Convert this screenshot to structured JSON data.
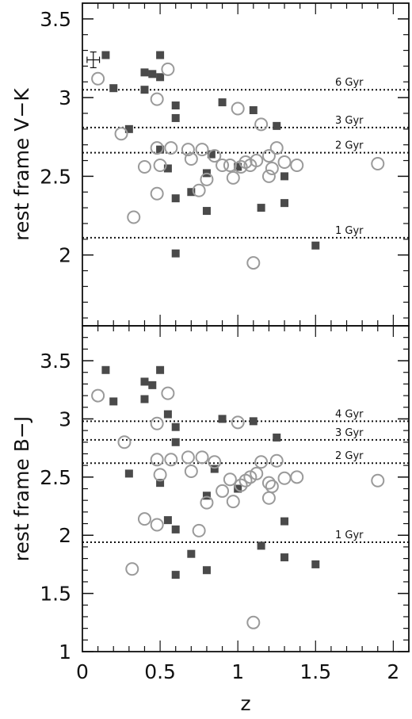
{
  "chart_data": [
    {
      "type": "scatter",
      "panel": "top",
      "ylabel": "rest frame V−K",
      "xlim": [
        0,
        2.1
      ],
      "ylim": [
        1.55,
        3.6
      ],
      "y_ticks": [
        "2",
        "2.5",
        "3",
        "3.5"
      ],
      "y_tick_values": [
        2,
        2.5,
        3,
        3.5
      ],
      "reference_lines": [
        {
          "y": 3.05,
          "label": "6 Gyr"
        },
        {
          "y": 2.81,
          "label": "3 Gyr"
        },
        {
          "y": 2.65,
          "label": "2 Gyr"
        },
        {
          "y": 2.11,
          "label": "1 Gyr"
        }
      ],
      "error_bar": {
        "x": 0.07,
        "y": 3.24,
        "xerr": 0.04,
        "yerr": 0.05
      },
      "series": [
        {
          "marker": "filled-square",
          "points": [
            [
              0.15,
              3.27
            ],
            [
              0.2,
              3.06
            ],
            [
              0.3,
              2.8
            ],
            [
              0.4,
              3.16
            ],
            [
              0.45,
              3.15
            ],
            [
              0.5,
              3.27
            ],
            [
              0.5,
              3.13
            ],
            [
              0.4,
              3.05
            ],
            [
              0.6,
              2.95
            ],
            [
              0.6,
              2.87
            ],
            [
              0.5,
              2.67
            ],
            [
              0.55,
              2.55
            ],
            [
              0.6,
              2.36
            ],
            [
              0.7,
              2.4
            ],
            [
              0.8,
              2.28
            ],
            [
              0.6,
              2.01
            ],
            [
              0.8,
              2.52
            ],
            [
              0.83,
              2.64
            ],
            [
              0.9,
              2.97
            ],
            [
              1.0,
              2.56
            ],
            [
              1.1,
              2.92
            ],
            [
              1.15,
              2.3
            ],
            [
              1.25,
              2.82
            ],
            [
              1.3,
              2.5
            ],
            [
              1.3,
              2.33
            ],
            [
              1.5,
              2.06
            ]
          ]
        },
        {
          "marker": "open-circle",
          "points": [
            [
              0.1,
              3.12
            ],
            [
              0.25,
              2.77
            ],
            [
              0.33,
              2.24
            ],
            [
              0.4,
              2.56
            ],
            [
              0.48,
              2.99
            ],
            [
              0.48,
              2.68
            ],
            [
              0.5,
              2.57
            ],
            [
              0.48,
              2.39
            ],
            [
              0.55,
              3.18
            ],
            [
              0.57,
              2.68
            ],
            [
              0.68,
              2.67
            ],
            [
              0.7,
              2.61
            ],
            [
              0.75,
              2.41
            ],
            [
              0.77,
              2.67
            ],
            [
              0.8,
              2.48
            ],
            [
              0.85,
              2.63
            ],
            [
              0.9,
              2.57
            ],
            [
              0.95,
              2.57
            ],
            [
              0.97,
              2.49
            ],
            [
              1.0,
              2.93
            ],
            [
              1.02,
              2.56
            ],
            [
              1.05,
              2.59
            ],
            [
              1.08,
              2.57
            ],
            [
              1.1,
              1.95
            ],
            [
              1.12,
              2.6
            ],
            [
              1.15,
              2.83
            ],
            [
              1.2,
              2.63
            ],
            [
              1.2,
              2.5
            ],
            [
              1.22,
              2.55
            ],
            [
              1.25,
              2.68
            ],
            [
              1.3,
              2.59
            ],
            [
              1.38,
              2.57
            ],
            [
              1.9,
              2.58
            ]
          ]
        }
      ]
    },
    {
      "type": "scatter",
      "panel": "bottom",
      "xlabel": "z",
      "ylabel": "rest frame B−J",
      "xlim": [
        0,
        2.1
      ],
      "ylim": [
        1.0,
        3.8
      ],
      "x_ticks": [
        "0",
        "0.5",
        "1",
        "1.5",
        "2"
      ],
      "x_tick_values": [
        0,
        0.5,
        1,
        1.5,
        2
      ],
      "y_ticks": [
        "1",
        "1.5",
        "2",
        "2.5",
        "3",
        "3.5"
      ],
      "y_tick_values": [
        1,
        1.5,
        2,
        2.5,
        3,
        3.5
      ],
      "reference_lines": [
        {
          "y": 2.98,
          "label": "4 Gyr"
        },
        {
          "y": 2.82,
          "label": "3 Gyr"
        },
        {
          "y": 2.62,
          "label": "2 Gyr"
        },
        {
          "y": 1.94,
          "label": "1 Gyr"
        }
      ],
      "series": [
        {
          "marker": "filled-square",
          "points": [
            [
              0.15,
              3.42
            ],
            [
              0.2,
              3.15
            ],
            [
              0.3,
              2.53
            ],
            [
              0.4,
              3.32
            ],
            [
              0.45,
              3.29
            ],
            [
              0.5,
              3.42
            ],
            [
              0.4,
              3.17
            ],
            [
              0.55,
              3.04
            ],
            [
              0.6,
              2.93
            ],
            [
              0.6,
              2.8
            ],
            [
              0.5,
              2.45
            ],
            [
              0.55,
              2.13
            ],
            [
              0.6,
              2.05
            ],
            [
              0.6,
              1.66
            ],
            [
              0.7,
              1.84
            ],
            [
              0.8,
              1.7
            ],
            [
              0.8,
              2.34
            ],
            [
              0.85,
              2.57
            ],
            [
              0.9,
              3.0
            ],
            [
              1.0,
              2.4
            ],
            [
              1.1,
              2.98
            ],
            [
              1.15,
              1.91
            ],
            [
              1.25,
              2.84
            ],
            [
              1.3,
              2.12
            ],
            [
              1.3,
              1.81
            ],
            [
              1.5,
              1.75
            ]
          ]
        },
        {
          "marker": "open-circle",
          "points": [
            [
              0.1,
              3.2
            ],
            [
              0.27,
              2.8
            ],
            [
              0.32,
              1.71
            ],
            [
              0.4,
              2.14
            ],
            [
              0.48,
              2.96
            ],
            [
              0.48,
              2.65
            ],
            [
              0.5,
              2.52
            ],
            [
              0.48,
              2.09
            ],
            [
              0.55,
              3.22
            ],
            [
              0.57,
              2.65
            ],
            [
              0.68,
              2.67
            ],
            [
              0.7,
              2.55
            ],
            [
              0.75,
              2.04
            ],
            [
              0.77,
              2.67
            ],
            [
              0.8,
              2.28
            ],
            [
              0.85,
              2.63
            ],
            [
              0.9,
              2.38
            ],
            [
              0.95,
              2.48
            ],
            [
              0.97,
              2.29
            ],
            [
              1.0,
              2.97
            ],
            [
              1.02,
              2.43
            ],
            [
              1.05,
              2.47
            ],
            [
              1.08,
              2.5
            ],
            [
              1.1,
              1.25
            ],
            [
              1.12,
              2.53
            ],
            [
              1.15,
              2.63
            ],
            [
              1.2,
              2.32
            ],
            [
              1.2,
              2.45
            ],
            [
              1.22,
              2.42
            ],
            [
              1.25,
              2.64
            ],
            [
              1.3,
              2.49
            ],
            [
              1.38,
              2.5
            ],
            [
              1.9,
              2.47
            ]
          ]
        }
      ]
    }
  ]
}
